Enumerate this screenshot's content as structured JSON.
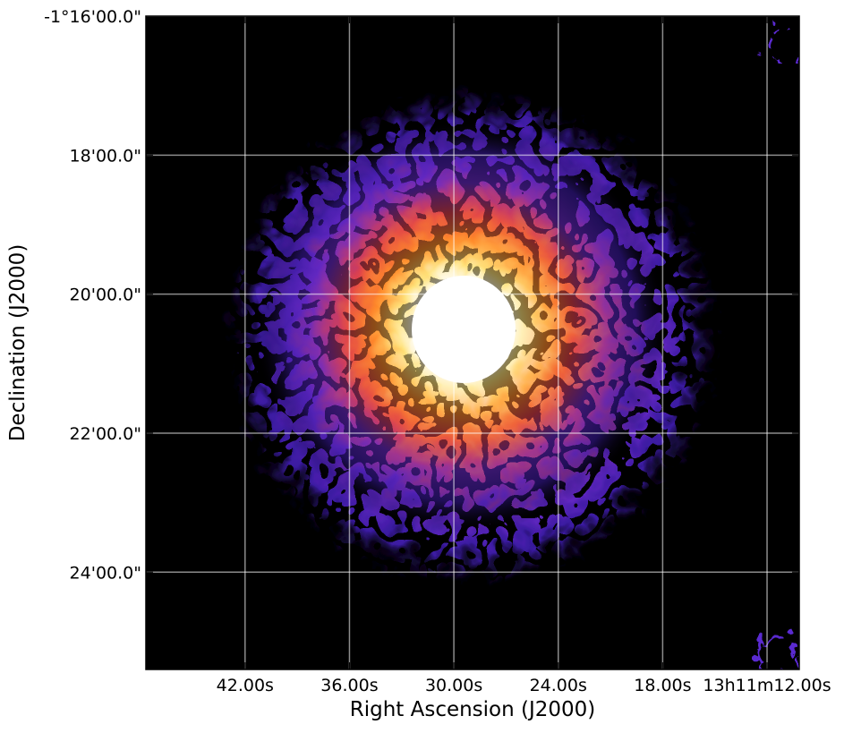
{
  "chart_data": {
    "type": "image",
    "xlabel": "Right Ascension (J2000)",
    "ylabel": "Declination (J2000)",
    "xlim": [
      47.7,
      10.15
    ],
    "ylim": [
      -85.4,
      -76
    ],
    "xticks": [
      {
        "value": 42,
        "label": "42.00s"
      },
      {
        "value": 36,
        "label": "36.00s"
      },
      {
        "value": 30,
        "label": "30.00s"
      },
      {
        "value": 24,
        "label": "24.00s"
      },
      {
        "value": 18,
        "label": "18.00s"
      },
      {
        "value": 12,
        "label": "13h11m12.00s"
      }
    ],
    "yticks": [
      {
        "value": -76,
        "label": "-1°16'00.0\""
      },
      {
        "value": -78,
        "label": "18'00.0\""
      },
      {
        "value": -80,
        "label": "20'00.0\""
      },
      {
        "value": -82,
        "label": "22'00.0\""
      },
      {
        "value": -84,
        "label": "24'00.0\""
      }
    ],
    "grid": true
  }
}
